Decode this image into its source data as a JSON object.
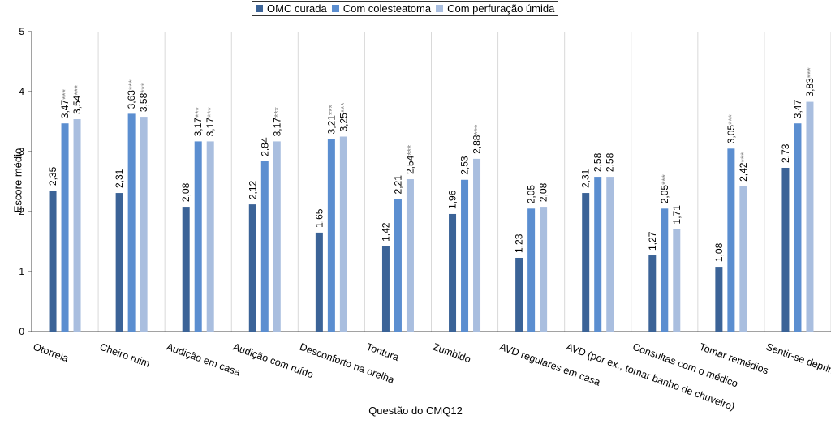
{
  "legend": {
    "items": [
      {
        "label": "OMC curada",
        "color": "#3b6397"
      },
      {
        "label": "Com colesteatoma",
        "color": "#5b8ed0"
      },
      {
        "label": "Com perfuração úmida",
        "color": "#a9bedf"
      }
    ]
  },
  "chart_data": {
    "type": "bar",
    "ylabel": "Escore médio",
    "xlabel": "Questão do CMQ12",
    "ylim": [
      0,
      5
    ],
    "yticks": [
      "0",
      "1",
      "2",
      "3",
      "4",
      "5"
    ],
    "grid": "vertical separators between categories",
    "legend_position": "top",
    "categories": [
      "Otorreia",
      "Cheiro ruim",
      "Audição em casa",
      "Audição com ruído",
      "Desconforto na orelha",
      "Tontura",
      "Zumbido",
      "AVD regulares em casa",
      "AVD (por ex., tomar banho de chuveiro)",
      "Consultas com o médico",
      "Tomar remédios",
      "Sentir-se deprimido (a)"
    ],
    "series": [
      {
        "name": "OMC curada",
        "color": "#3b6397",
        "values": [
          2.35,
          2.31,
          2.08,
          2.12,
          1.65,
          1.42,
          1.96,
          1.23,
          2.31,
          1.27,
          1.08,
          2.73
        ],
        "labels": [
          "2,35",
          "2,31",
          "2,08",
          "2,12",
          "1,65",
          "1,42",
          "1,96",
          "1,23",
          "2,31",
          "1,27",
          "1,08",
          "2,73"
        ],
        "significance": [
          "",
          "",
          "",
          "",
          "",
          "",
          "",
          "",
          "",
          "",
          "",
          ""
        ]
      },
      {
        "name": "Com colesteatoma",
        "color": "#5b8ed0",
        "values": [
          3.47,
          3.63,
          3.17,
          2.84,
          3.21,
          2.21,
          2.53,
          2.05,
          2.58,
          2.05,
          3.05,
          3.47
        ],
        "labels": [
          "3,47",
          "3,63",
          "3,17",
          "2,84",
          "3,21",
          "2,21",
          "2,53",
          "2,05",
          "2,58",
          "2,05",
          "3,05",
          "3,47"
        ],
        "significance": [
          "***",
          "***",
          "***",
          "",
          "***",
          "",
          "",
          "",
          "",
          "***",
          "***",
          ""
        ]
      },
      {
        "name": "Com perfuração úmida",
        "color": "#a9bedf",
        "values": [
          3.54,
          3.58,
          3.17,
          3.17,
          3.25,
          2.54,
          2.88,
          2.08,
          2.58,
          1.71,
          2.42,
          3.83
        ],
        "labels": [
          "3,54",
          "3,58",
          "3,17",
          "3,17",
          "3,25",
          "2,54",
          "2,88",
          "2,08",
          "2,58",
          "1,71",
          "2,42",
          "3,83"
        ],
        "significance": [
          "***",
          "***",
          "***",
          "***",
          "***",
          "***",
          "***",
          "",
          "",
          "",
          "***",
          "***"
        ]
      }
    ]
  }
}
